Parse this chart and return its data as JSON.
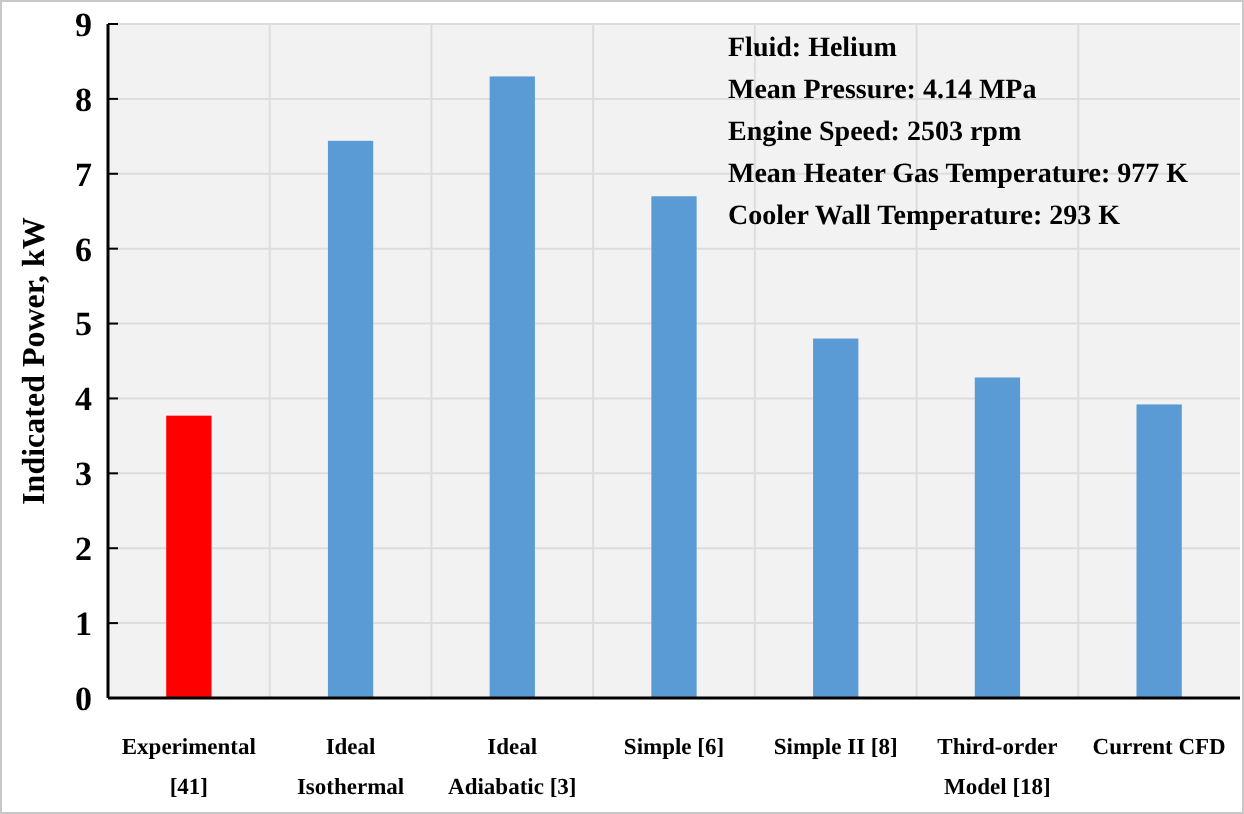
{
  "chart_data": {
    "type": "bar",
    "ylabel": "Indicated Power, kW",
    "categories": [
      "Experimental [41]",
      "Ideal Isothermal",
      "Ideal Adiabatic [3]",
      "Simple [6]",
      "Simple II [8]",
      "Third-order Model [18]",
      "Current CFD"
    ],
    "values": [
      3.77,
      7.44,
      8.3,
      6.7,
      4.8,
      4.28,
      3.92
    ],
    "colors": [
      "#ff0000",
      "#5b9bd5",
      "#5b9bd5",
      "#5b9bd5",
      "#5b9bd5",
      "#5b9bd5",
      "#5b9bd5"
    ],
    "ylim": [
      0,
      9
    ],
    "yticks": [
      0,
      1,
      2,
      3,
      4,
      5,
      6,
      7,
      8,
      9
    ],
    "grid": true,
    "annotations": [
      "Fluid: Helium",
      "Mean Pressure: 4.14 MPa",
      "Engine Speed: 2503 rpm",
      "Mean Heater Gas Temperature: 977 K",
      "Cooler Wall Temperature: 293 K"
    ]
  }
}
